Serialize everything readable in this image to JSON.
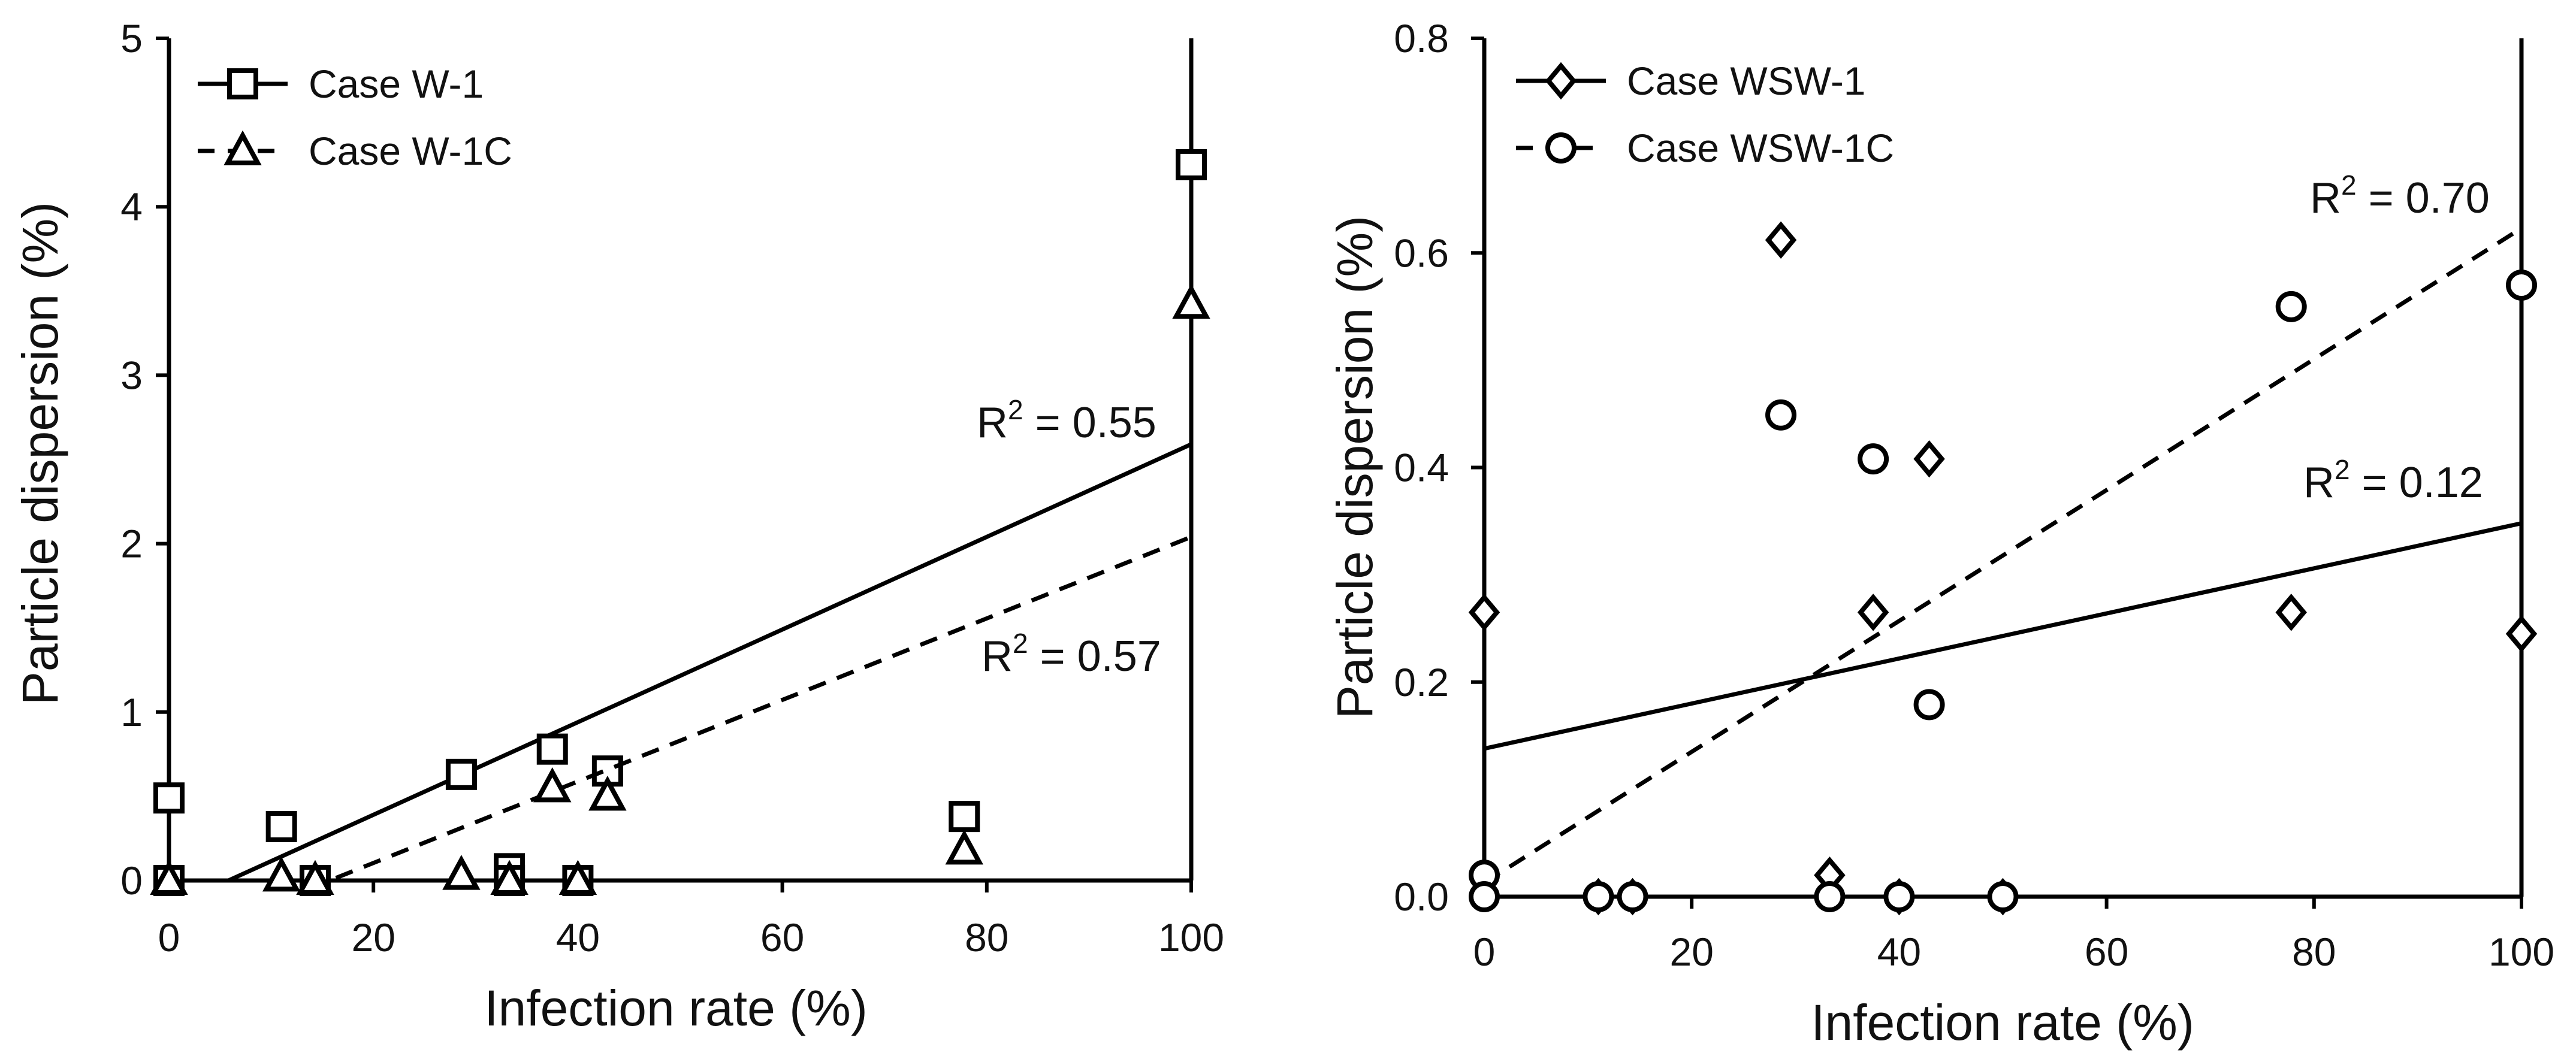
{
  "chart_data": [
    {
      "type": "scatter",
      "xlabel": "Infection rate (%)",
      "ylabel": "Particle dispersion (%)",
      "xlim": [
        0,
        100
      ],
      "ylim": [
        0,
        5
      ],
      "xticks": [
        "0",
        "20",
        "40",
        "60",
        "80",
        "100"
      ],
      "yticks": [
        "0",
        "1",
        "2",
        "3",
        "4",
        "5"
      ],
      "legend_position": "top-left",
      "series": [
        {
          "name": "Case W-1",
          "legend": "Case W-1",
          "marker": "square",
          "line_style": "solid",
          "x": [
            0,
            0,
            11,
            14.3,
            28.6,
            33.3,
            33.3,
            37.5,
            40,
            42.9,
            77.8,
            100
          ],
          "y": [
            0.49,
            0,
            0.32,
            0,
            0.63,
            0.07,
            0,
            0.78,
            0,
            0.65,
            0.38,
            4.25
          ],
          "fit": {
            "slope": 0.0275,
            "intercept": -0.16,
            "r2_label": "R2 = 0.55",
            "r2_prefix": "R",
            "r2_exp": "2",
            "r2_value": " = 0.55"
          }
        },
        {
          "name": "Case W-1C",
          "legend": "Case  W-1C",
          "marker": "triangle",
          "line_style": "dashed",
          "x": [
            0,
            11,
            14.3,
            28.6,
            33.3,
            37.5,
            40,
            42.9,
            77.8,
            100
          ],
          "y": [
            0,
            0.02,
            0,
            0.03,
            0,
            0.55,
            0,
            0.5,
            0.18,
            3.42
          ],
          "fit": {
            "slope": 0.0242,
            "intercept": -0.38,
            "r2_label": "R2 = 0.57",
            "r2_prefix": "R",
            "r2_exp": "2",
            "r2_value": " = 0.57"
          }
        }
      ]
    },
    {
      "type": "scatter",
      "xlabel": "Infection rate (%)",
      "ylabel": "Particle dispersion (%)",
      "xlim": [
        0,
        100
      ],
      "ylim": [
        0,
        0.8
      ],
      "xticks": [
        "0",
        "20",
        "40",
        "60",
        "80",
        "100"
      ],
      "yticks": [
        "0.0",
        "0.2",
        "0.4",
        "0.6",
        "0.8"
      ],
      "legend_position": "top-left",
      "series": [
        {
          "name": "Case WSW-1",
          "legend": "Case  WSW-1",
          "marker": "diamond",
          "line_style": "solid",
          "x": [
            0,
            11,
            14.3,
            28.6,
            33.3,
            37.5,
            40,
            42.9,
            50,
            77.8,
            100
          ],
          "y": [
            0.265,
            0,
            0,
            0.612,
            0.02,
            0.265,
            0,
            0.408,
            0,
            0.265,
            0.245
          ],
          "fit": {
            "slope": 0.0021,
            "intercept": 0.138,
            "r2_label": "R2 = 0.12",
            "r2_prefix": "R",
            "r2_exp": "2",
            "r2_value": " = 0.12"
          }
        },
        {
          "name": "Case WSW-1C",
          "legend": "Case WSW-1C",
          "marker": "circle",
          "line_style": "dashed",
          "x": [
            0,
            0,
            11,
            14.3,
            28.6,
            33.3,
            37.5,
            40,
            42.9,
            50,
            77.8,
            100
          ],
          "y": [
            0.02,
            0,
            0,
            0,
            0.449,
            0,
            0.408,
            0,
            0.179,
            0,
            0.55,
            0.57
          ],
          "fit": {
            "slope": 0.0061,
            "intercept": 0.013,
            "r2_label": "R2 = 0.70",
            "r2_prefix": "R",
            "r2_exp": "2",
            "r2_value": " = 0.70"
          }
        }
      ]
    }
  ]
}
